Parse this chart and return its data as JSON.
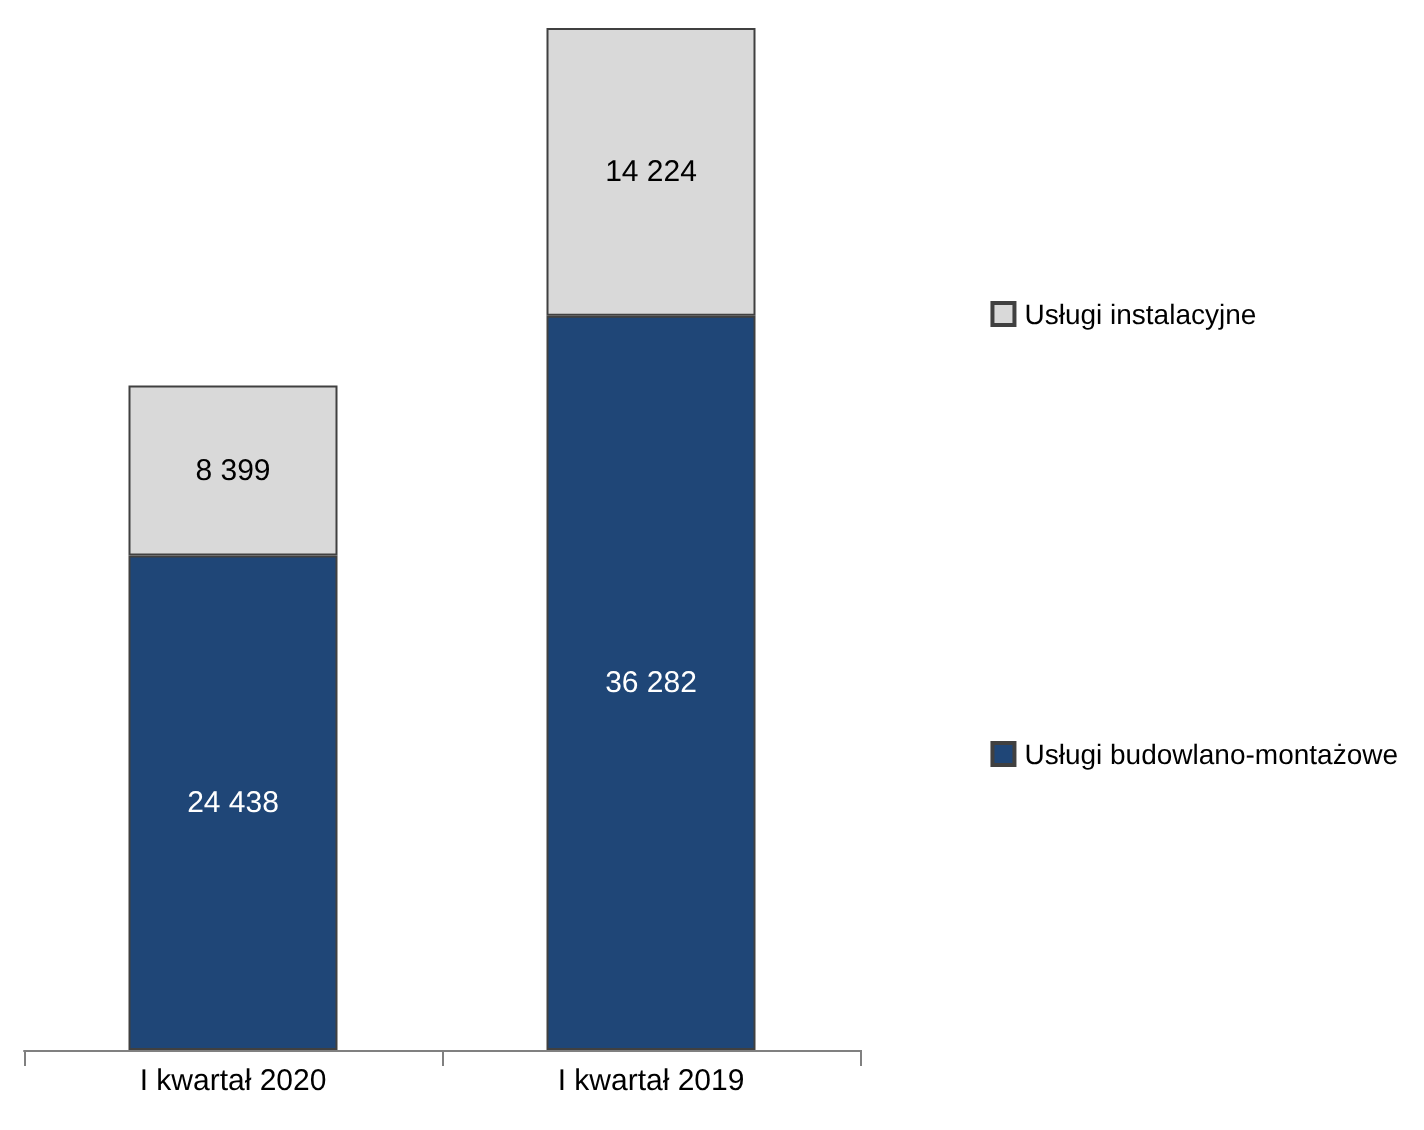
{
  "chart_data": {
    "type": "bar",
    "stacked": true,
    "tick_labels": "x",
    "categories": [
      "I kwartał 2020",
      "I kwartał 2019"
    ],
    "series": [
      {
        "name": "Usługi budowlano-montażowe",
        "color": "#1f4677",
        "values": [
          24438,
          36282
        ],
        "value_labels": [
          "24 438",
          "36 282"
        ]
      },
      {
        "name": "Usługi instalacyjne",
        "color": "#d9d9d9",
        "values": [
          8399,
          14224
        ],
        "value_labels": [
          "8 399",
          "14 224"
        ]
      }
    ],
    "legend": "right",
    "grid": false
  }
}
